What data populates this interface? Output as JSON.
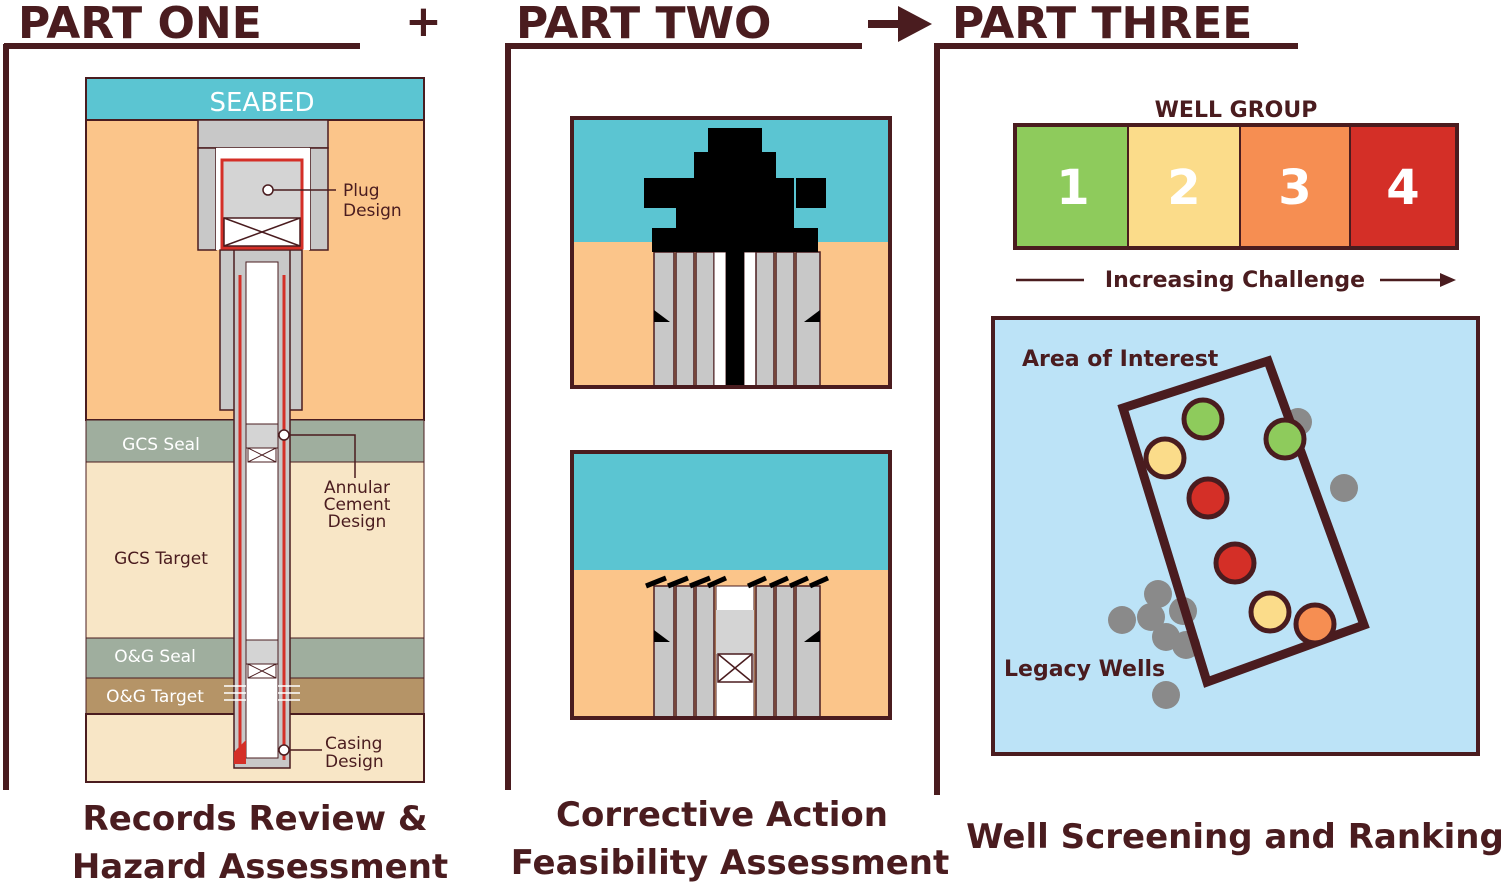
{
  "part_one": {
    "heading": "PART ONE",
    "seabed": "SEABED",
    "plug_design": [
      "Plug",
      "Design"
    ],
    "annular_cement": [
      "Annular",
      "Cement",
      "Design"
    ],
    "casing_design": [
      "Casing",
      "Design"
    ],
    "layers": [
      "GCS Seal",
      "GCS Target",
      "O&G Seal",
      "O&G Target"
    ],
    "caption": [
      "Records Review &",
      "Hazard Assessment"
    ]
  },
  "plus": "+",
  "part_two": {
    "heading": "PART TWO",
    "caption": [
      "Corrective Action",
      "Feasibility Assessment"
    ]
  },
  "part_three": {
    "heading": "PART THREE",
    "well_group_title": "WELL GROUP",
    "groups": [
      {
        "label": "1",
        "color": "#8ecb5c"
      },
      {
        "label": "2",
        "color": "#fbdc8a"
      },
      {
        "label": "3",
        "color": "#f68e52"
      },
      {
        "label": "4",
        "color": "#d42f27"
      }
    ],
    "increasing_challenge": "Increasing Challenge",
    "area_of_interest": "Area of Interest",
    "legacy_wells": "Legacy Wells",
    "caption": "Well Screening and Ranking"
  },
  "colors": {
    "dark": "#4a1c1f",
    "seabed": "#5bc5d2",
    "sediment": "#fbc58a",
    "seal": "#9fae9e",
    "target": "#f8e6c6",
    "og_target": "#b59467",
    "map_bg": "#bce3f7",
    "legacy_well": "#8a8a8a"
  }
}
